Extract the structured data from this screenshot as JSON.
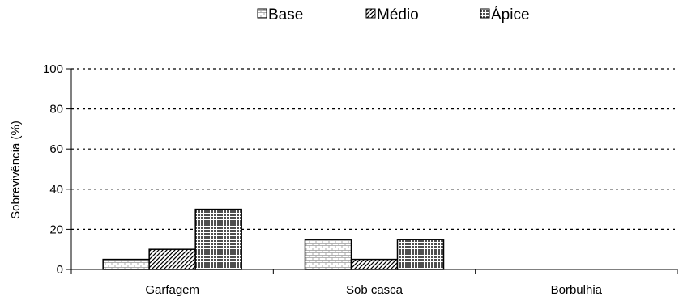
{
  "chart_data": {
    "type": "bar",
    "title": "",
    "xlabel": "",
    "ylabel": "Sobrevivência (%)",
    "ylim": [
      0,
      100
    ],
    "yticks": [
      0,
      20,
      40,
      60,
      80,
      100
    ],
    "grid": true,
    "legend_position": "top",
    "categories": [
      "Garfagem",
      "Sob casca",
      "Borbulhia"
    ],
    "series": [
      {
        "name": "Base",
        "values": [
          5,
          15,
          0
        ],
        "pattern": "brick"
      },
      {
        "name": "Médio",
        "values": [
          10,
          5,
          0
        ],
        "pattern": "diagonal"
      },
      {
        "name": "Ápice",
        "values": [
          30,
          15,
          0
        ],
        "pattern": "grid"
      }
    ]
  }
}
